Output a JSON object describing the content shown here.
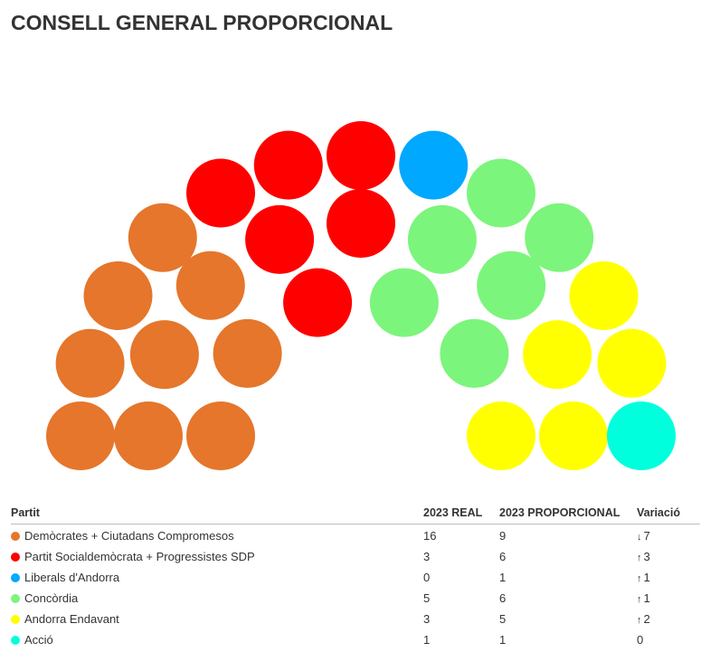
{
  "chart_data": {
    "type": "parliament",
    "title": "CONSELL GENERAL PROPORCIONAL",
    "total_seats": 28,
    "series": [
      {
        "name": "Demòcrates + Ciutadans Compromesos",
        "color": "#e5762c",
        "seats": 9
      },
      {
        "name": "Partit Socialdemòcrata + Progressistes SDP",
        "color": "#ff0000",
        "seats": 6
      },
      {
        "name": "Liberals d'Andorra",
        "color": "#00a8ff",
        "seats": 1
      },
      {
        "name": "Concòrdia",
        "color": "#7cf57c",
        "seats": 6
      },
      {
        "name": "Andorra Endavant",
        "color": "#ffff00",
        "seats": 5
      },
      {
        "name": "Acció",
        "color": "#00ffdd",
        "seats": 1
      }
    ]
  },
  "table": {
    "headers": {
      "party": "Partit",
      "real": "2023 REAL",
      "proportional": "2023 PROPORCIONAL",
      "variation": "Variació"
    },
    "rows": [
      {
        "party": "Demòcrates + Ciutadans Compromesos",
        "color": "#e5762c",
        "real": "16",
        "proportional": "9",
        "arrow": "↓",
        "variation": "7",
        "trend": "down"
      },
      {
        "party": "Partit Socialdemòcrata + Progressistes SDP",
        "color": "#ff0000",
        "real": "3",
        "proportional": "6",
        "arrow": "↑",
        "variation": "3",
        "trend": "up"
      },
      {
        "party": "Liberals d'Andorra",
        "color": "#00a8ff",
        "real": "0",
        "proportional": "1",
        "arrow": "↑",
        "variation": "1",
        "trend": "up"
      },
      {
        "party": "Concòrdia",
        "color": "#7cf57c",
        "real": "5",
        "proportional": "6",
        "arrow": "↑",
        "variation": "1",
        "trend": "up"
      },
      {
        "party": "Andorra Endavant",
        "color": "#ffff00",
        "real": "3",
        "proportional": "5",
        "arrow": "↑",
        "variation": "2",
        "trend": "up"
      },
      {
        "party": "Acció",
        "color": "#00ffdd",
        "real": "1",
        "proportional": "1",
        "arrow": "",
        "variation": "0",
        "trend": "zero"
      }
    ]
  }
}
